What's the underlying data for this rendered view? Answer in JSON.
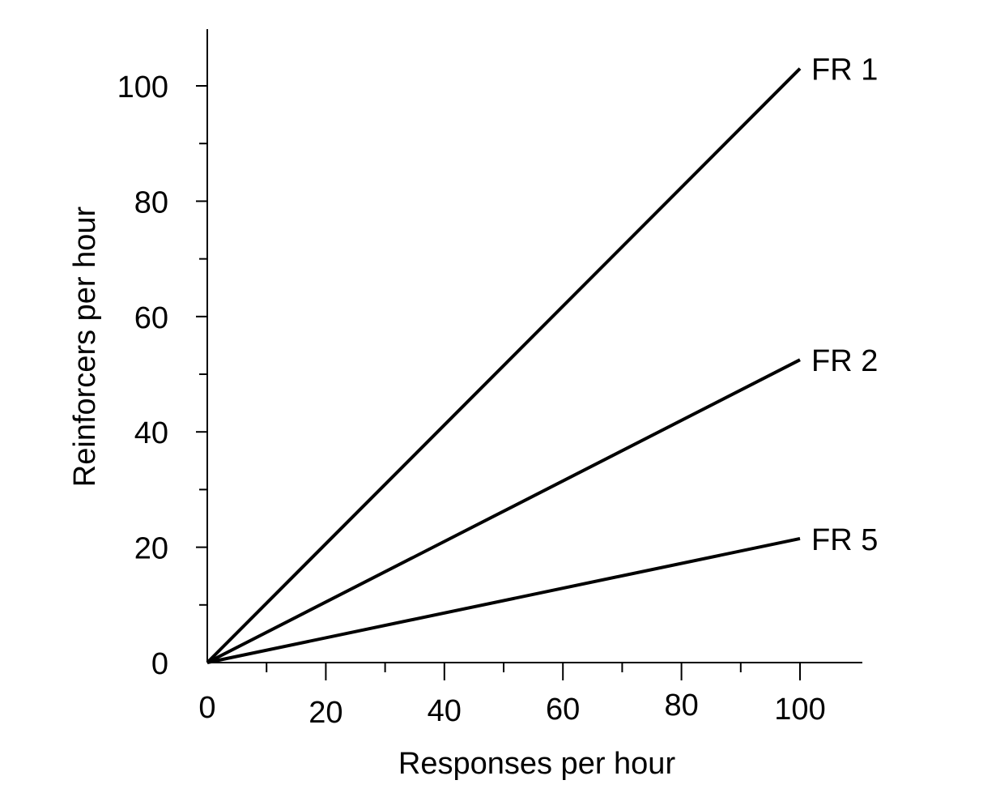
{
  "chart_data": {
    "type": "line",
    "title": "",
    "xlabel": "Responses per hour",
    "ylabel": "Reinforcers per hour",
    "xlim": [
      0,
      110
    ],
    "ylim": [
      0,
      110
    ],
    "x_ticks": [
      0,
      20,
      40,
      60,
      80,
      100
    ],
    "x_minor_ticks": [
      10,
      30,
      50,
      70,
      90
    ],
    "y_ticks": [
      0,
      20,
      40,
      60,
      80,
      100
    ],
    "y_minor_ticks": [
      10,
      30,
      50,
      70,
      90
    ],
    "x_tick_labels": [
      "0",
      "20",
      "40",
      "60",
      "80",
      "100"
    ],
    "y_tick_labels": [
      "0",
      "20",
      "40",
      "60",
      "80",
      "100"
    ],
    "grid": false,
    "legend": "inline labels at line ends",
    "series": [
      {
        "name": "FR 1",
        "x": [
          0,
          100
        ],
        "y": [
          0,
          103
        ]
      },
      {
        "name": "FR 2",
        "x": [
          0,
          100
        ],
        "y": [
          0,
          52.5
        ]
      },
      {
        "name": "FR 5",
        "x": [
          0,
          100
        ],
        "y": [
          0,
          21.5
        ]
      }
    ]
  }
}
